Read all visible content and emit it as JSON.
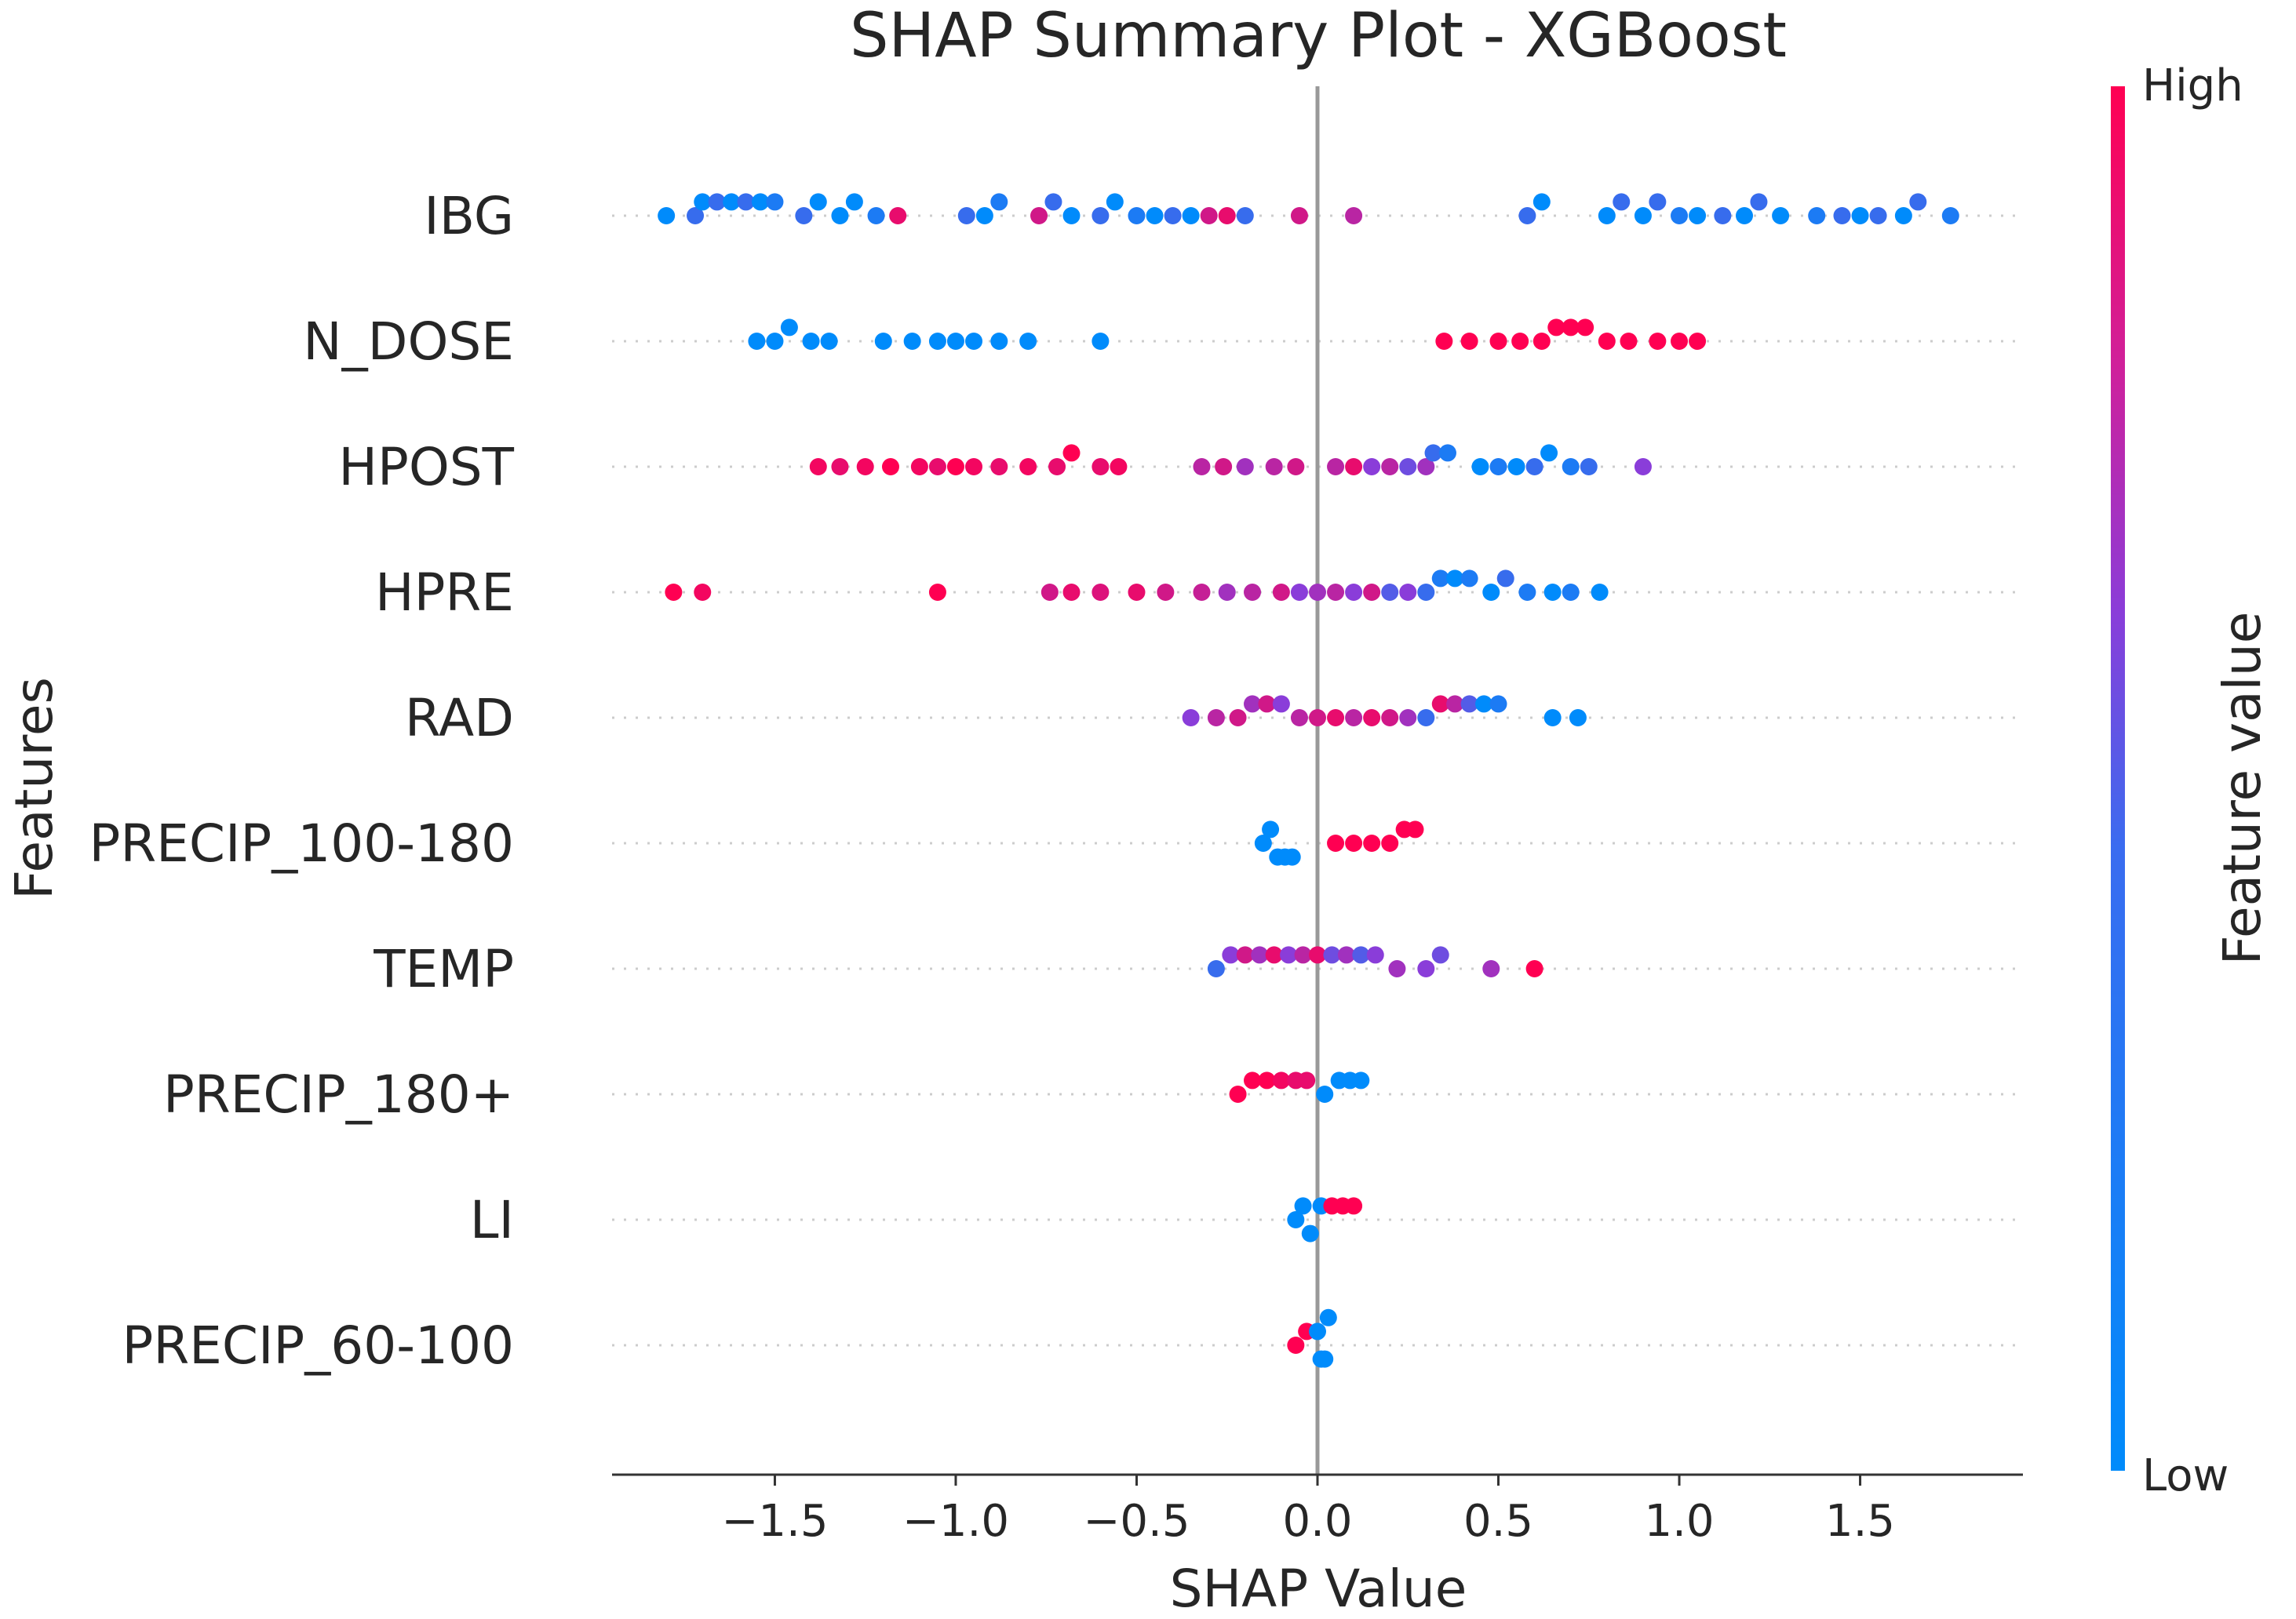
{
  "chart_data": {
    "type": "scatter",
    "subtype": "shap-beeswarm",
    "title": "SHAP Summary Plot - XGBoost",
    "xlabel": "SHAP Value",
    "ylabel": "Features",
    "xlim": [
      -1.95,
      1.95
    ],
    "xticks": [
      -1.5,
      -1.0,
      -0.5,
      0.0,
      0.5,
      1.0,
      1.5
    ],
    "xtick_labels": [
      "−1.5",
      "−1.0",
      "−0.5",
      "0.0",
      "0.5",
      "1.0",
      "1.5"
    ],
    "grid": "dotted horizontal per feature",
    "colorbar": {
      "label": "Feature value",
      "high_label": "High",
      "low_label": "Low",
      "low_color": "#008bfb",
      "mid_color": "#8a3dd9",
      "high_color": "#ff0052"
    },
    "features": [
      {
        "name": "IBG",
        "points": [
          [
            -1.8,
            0.0
          ],
          [
            -1.72,
            0.2
          ],
          [
            -1.7,
            0.0
          ],
          [
            -1.66,
            0.2
          ],
          [
            -1.62,
            0.0
          ],
          [
            -1.58,
            0.2
          ],
          [
            -1.54,
            0.0
          ],
          [
            -1.5,
            0.1
          ],
          [
            -1.42,
            0.2
          ],
          [
            -1.38,
            0.0
          ],
          [
            -1.32,
            0.0
          ],
          [
            -1.28,
            0.0
          ],
          [
            -1.22,
            0.1
          ],
          [
            -1.16,
            0.9
          ],
          [
            -0.97,
            0.2
          ],
          [
            -0.92,
            0.0
          ],
          [
            -0.88,
            0.1
          ],
          [
            -0.77,
            0.8
          ],
          [
            -0.73,
            0.2
          ],
          [
            -0.68,
            0.0
          ],
          [
            -0.6,
            0.2
          ],
          [
            -0.56,
            0.0
          ],
          [
            -0.5,
            0.1
          ],
          [
            -0.45,
            0.0
          ],
          [
            -0.4,
            0.2
          ],
          [
            -0.35,
            0.0
          ],
          [
            -0.3,
            0.8
          ],
          [
            -0.25,
            0.9
          ],
          [
            -0.2,
            0.2
          ],
          [
            -0.05,
            0.8
          ],
          [
            0.1,
            0.7
          ],
          [
            0.58,
            0.2
          ],
          [
            0.62,
            0.0
          ],
          [
            0.8,
            0.0
          ],
          [
            0.84,
            0.2
          ],
          [
            0.9,
            0.0
          ],
          [
            0.94,
            0.2
          ],
          [
            1.0,
            0.1
          ],
          [
            1.05,
            0.0
          ],
          [
            1.12,
            0.2
          ],
          [
            1.18,
            0.0
          ],
          [
            1.22,
            0.2
          ],
          [
            1.28,
            0.0
          ],
          [
            1.38,
            0.1
          ],
          [
            1.45,
            0.2
          ],
          [
            1.5,
            0.0
          ],
          [
            1.55,
            0.2
          ],
          [
            1.62,
            0.0
          ],
          [
            1.66,
            0.2
          ],
          [
            1.75,
            0.1
          ]
        ]
      },
      {
        "name": "N_DOSE",
        "points": [
          [
            -1.55,
            0.0
          ],
          [
            -1.5,
            0.0
          ],
          [
            -1.46,
            0.0
          ],
          [
            -1.4,
            0.0
          ],
          [
            -1.35,
            0.0
          ],
          [
            -1.2,
            0.0
          ],
          [
            -1.12,
            0.0
          ],
          [
            -1.05,
            0.0
          ],
          [
            -1.0,
            0.0
          ],
          [
            -0.95,
            0.0
          ],
          [
            -0.88,
            0.0
          ],
          [
            -0.8,
            0.0
          ],
          [
            -0.6,
            0.0
          ],
          [
            0.35,
            1.0
          ],
          [
            0.42,
            1.0
          ],
          [
            0.5,
            1.0
          ],
          [
            0.56,
            1.0
          ],
          [
            0.62,
            1.0
          ],
          [
            0.66,
            1.0
          ],
          [
            0.7,
            1.0
          ],
          [
            0.74,
            1.0
          ],
          [
            0.8,
            1.0
          ],
          [
            0.86,
            1.0
          ],
          [
            0.94,
            1.0
          ],
          [
            1.0,
            1.0
          ],
          [
            1.05,
            1.0
          ]
        ]
      },
      {
        "name": "HPOST",
        "points": [
          [
            -1.38,
            0.95
          ],
          [
            -1.32,
            0.9
          ],
          [
            -1.25,
            0.95
          ],
          [
            -1.18,
            1.0
          ],
          [
            -1.1,
            0.95
          ],
          [
            -1.05,
            0.9
          ],
          [
            -1.0,
            1.0
          ],
          [
            -0.95,
            0.95
          ],
          [
            -0.88,
            0.9
          ],
          [
            -0.8,
            0.95
          ],
          [
            -0.72,
            0.9
          ],
          [
            -0.68,
            1.0
          ],
          [
            -0.6,
            0.9
          ],
          [
            -0.55,
            0.95
          ],
          [
            -0.32,
            0.7
          ],
          [
            -0.26,
            0.8
          ],
          [
            -0.2,
            0.6
          ],
          [
            -0.12,
            0.7
          ],
          [
            -0.06,
            0.8
          ],
          [
            0.05,
            0.7
          ],
          [
            0.1,
            0.9
          ],
          [
            0.15,
            0.5
          ],
          [
            0.2,
            0.7
          ],
          [
            0.25,
            0.4
          ],
          [
            0.3,
            0.6
          ],
          [
            0.32,
            0.2
          ],
          [
            0.36,
            0.1
          ],
          [
            0.45,
            0.0
          ],
          [
            0.5,
            0.1
          ],
          [
            0.55,
            0.0
          ],
          [
            0.6,
            0.2
          ],
          [
            0.64,
            0.0
          ],
          [
            0.7,
            0.1
          ],
          [
            0.75,
            0.2
          ],
          [
            0.9,
            0.5
          ]
        ]
      },
      {
        "name": "HPRE",
        "points": [
          [
            -1.78,
            1.0
          ],
          [
            -1.7,
            0.95
          ],
          [
            -1.05,
            1.0
          ],
          [
            -0.74,
            0.8
          ],
          [
            -0.68,
            0.9
          ],
          [
            -0.6,
            0.85
          ],
          [
            -0.5,
            0.9
          ],
          [
            -0.42,
            0.8
          ],
          [
            -0.32,
            0.75
          ],
          [
            -0.25,
            0.6
          ],
          [
            -0.18,
            0.7
          ],
          [
            -0.1,
            0.8
          ],
          [
            -0.05,
            0.5
          ],
          [
            0.0,
            0.6
          ],
          [
            0.05,
            0.7
          ],
          [
            0.1,
            0.5
          ],
          [
            0.15,
            0.8
          ],
          [
            0.2,
            0.3
          ],
          [
            0.25,
            0.5
          ],
          [
            0.3,
            0.2
          ],
          [
            0.34,
            0.1
          ],
          [
            0.38,
            0.0
          ],
          [
            0.42,
            0.1
          ],
          [
            0.48,
            0.0
          ],
          [
            0.52,
            0.2
          ],
          [
            0.58,
            0.1
          ],
          [
            0.65,
            0.0
          ],
          [
            0.7,
            0.1
          ],
          [
            0.78,
            0.0
          ]
        ]
      },
      {
        "name": "RAD",
        "points": [
          [
            -0.35,
            0.5
          ],
          [
            -0.28,
            0.7
          ],
          [
            -0.22,
            0.8
          ],
          [
            -0.18,
            0.6
          ],
          [
            -0.14,
            0.8
          ],
          [
            -0.1,
            0.5
          ],
          [
            -0.05,
            0.7
          ],
          [
            0.0,
            0.8
          ],
          [
            0.05,
            0.9
          ],
          [
            0.1,
            0.7
          ],
          [
            0.15,
            0.9
          ],
          [
            0.2,
            0.8
          ],
          [
            0.25,
            0.6
          ],
          [
            0.3,
            0.2
          ],
          [
            0.34,
            0.9
          ],
          [
            0.38,
            0.7
          ],
          [
            0.42,
            0.3
          ],
          [
            0.46,
            0.0
          ],
          [
            0.5,
            0.1
          ],
          [
            0.65,
            0.0
          ],
          [
            0.72,
            0.0
          ]
        ]
      },
      {
        "name": "PRECIP_100-180",
        "points": [
          [
            -0.15,
            0.0
          ],
          [
            -0.13,
            0.0
          ],
          [
            -0.11,
            0.0
          ],
          [
            -0.09,
            0.0
          ],
          [
            -0.07,
            0.0
          ],
          [
            0.05,
            1.0
          ],
          [
            0.1,
            1.0
          ],
          [
            0.15,
            1.0
          ],
          [
            0.2,
            1.0
          ],
          [
            0.24,
            1.0
          ],
          [
            0.27,
            1.0
          ]
        ]
      },
      {
        "name": "TEMP",
        "points": [
          [
            -0.28,
            0.2
          ],
          [
            -0.24,
            0.5
          ],
          [
            -0.2,
            0.8
          ],
          [
            -0.16,
            0.6
          ],
          [
            -0.12,
            0.9
          ],
          [
            -0.08,
            0.5
          ],
          [
            -0.04,
            0.7
          ],
          [
            0.0,
            0.9
          ],
          [
            0.04,
            0.4
          ],
          [
            0.08,
            0.6
          ],
          [
            0.12,
            0.3
          ],
          [
            0.16,
            0.5
          ],
          [
            0.22,
            0.6
          ],
          [
            0.3,
            0.5
          ],
          [
            0.34,
            0.4
          ],
          [
            0.48,
            0.6
          ],
          [
            0.6,
            1.0
          ]
        ]
      },
      {
        "name": "PRECIP_180+",
        "points": [
          [
            -0.22,
            1.0
          ],
          [
            -0.18,
            1.0
          ],
          [
            -0.14,
            1.0
          ],
          [
            -0.1,
            0.95
          ],
          [
            -0.06,
            0.9
          ],
          [
            -0.03,
            0.9
          ],
          [
            0.02,
            0.0
          ],
          [
            0.06,
            0.0
          ],
          [
            0.09,
            0.0
          ],
          [
            0.12,
            0.0
          ]
        ]
      },
      {
        "name": "LI",
        "points": [
          [
            -0.06,
            0.0
          ],
          [
            -0.04,
            0.0
          ],
          [
            -0.02,
            0.0
          ],
          [
            0.01,
            0.0
          ],
          [
            0.04,
            1.0
          ],
          [
            0.07,
            1.0
          ],
          [
            0.1,
            1.0
          ]
        ]
      },
      {
        "name": "PRECIP_60-100",
        "points": [
          [
            -0.06,
            1.0
          ],
          [
            -0.03,
            1.0
          ],
          [
            0.0,
            0.0
          ],
          [
            0.01,
            0.0
          ],
          [
            0.02,
            0.0
          ],
          [
            0.03,
            0.0
          ]
        ]
      }
    ]
  }
}
